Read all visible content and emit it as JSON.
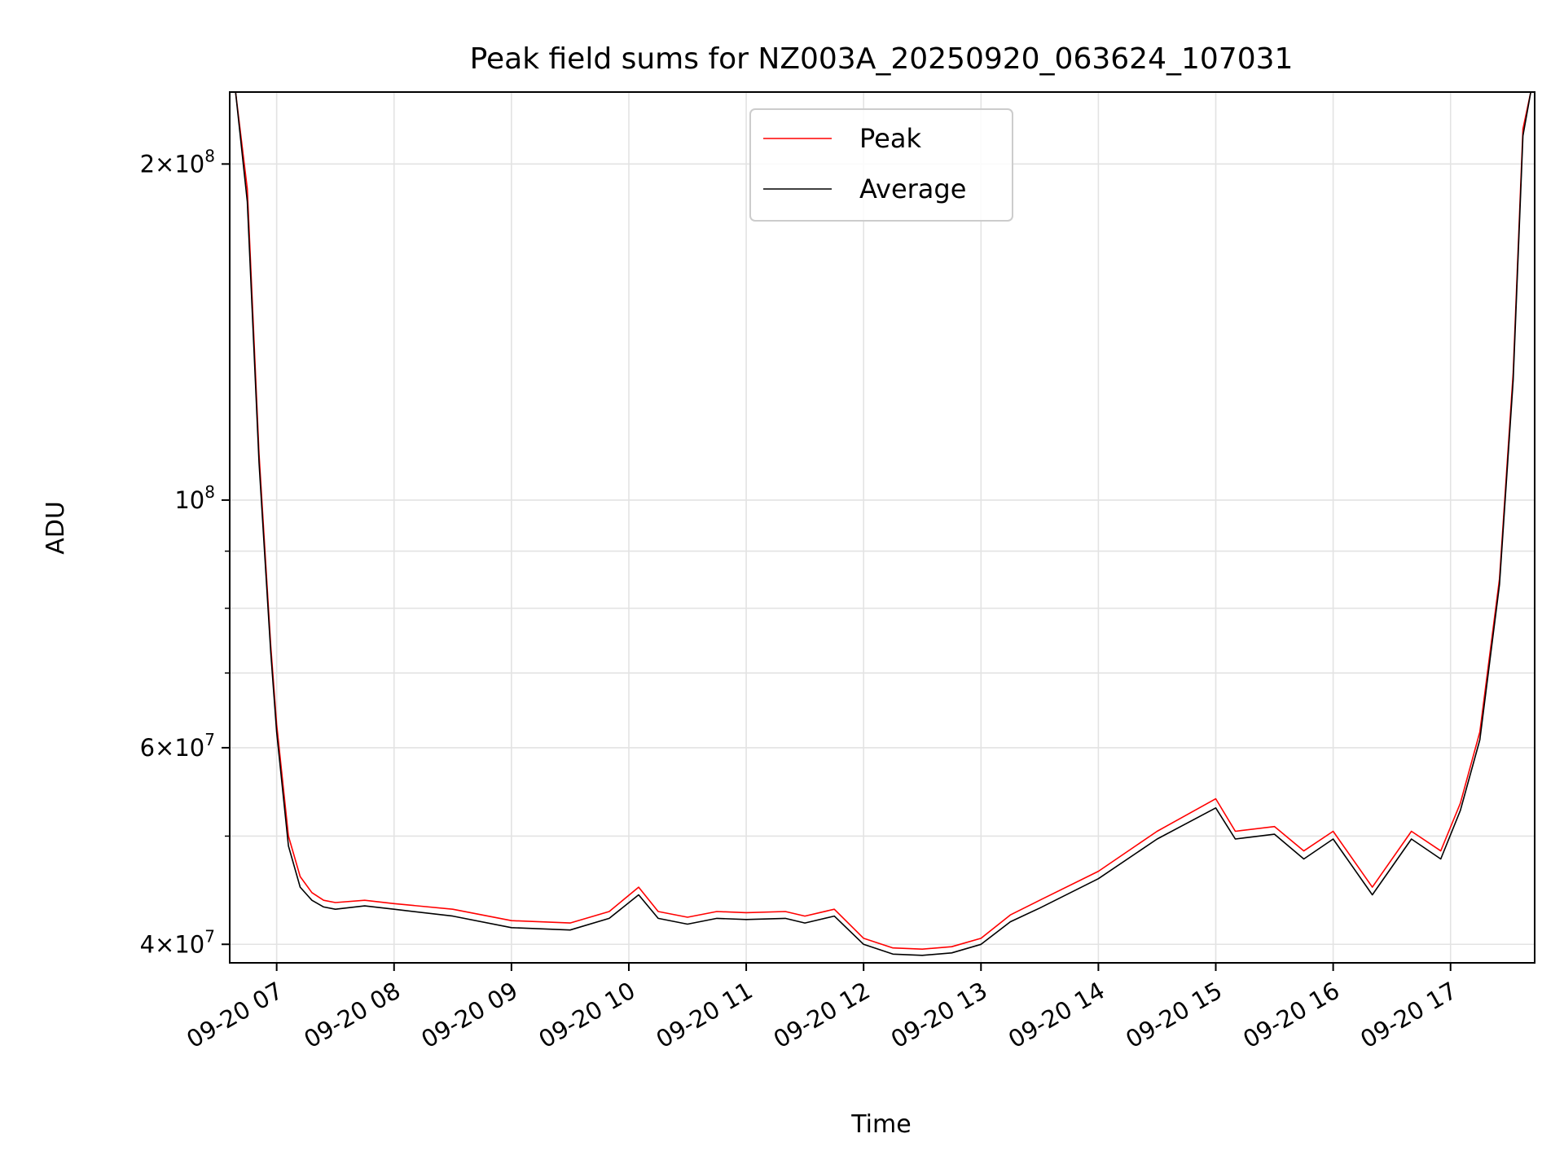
{
  "chart_data": {
    "type": "line",
    "title": "Peak field sums for NZ003A_20250920_063624_107031",
    "xlabel": "Time",
    "ylabel": "ADU",
    "yscale": "log",
    "ylim": [
      38500000,
      232000000
    ],
    "xlim": [
      "2025-09-20 06:36",
      "2025-09-20 17:43"
    ],
    "grid": true,
    "legend_position": "top-center",
    "x_ticks": [
      "09-20 07",
      "09-20 08",
      "09-20 09",
      "09-20 10",
      "09-20 11",
      "09-20 12",
      "09-20 13",
      "09-20 14",
      "09-20 15",
      "09-20 16",
      "09-20 17"
    ],
    "x_tick_values": [
      "2025-09-20 07:00",
      "2025-09-20 08:00",
      "2025-09-20 09:00",
      "2025-09-20 10:00",
      "2025-09-20 11:00",
      "2025-09-20 12:00",
      "2025-09-20 13:00",
      "2025-09-20 14:00",
      "2025-09-20 15:00",
      "2025-09-20 16:00",
      "2025-09-20 17:00"
    ],
    "y_ticks": [
      {
        "value": 40000000,
        "mantissa": "4",
        "exponent": "7"
      },
      {
        "value": 60000000,
        "mantissa": "6",
        "exponent": "7"
      },
      {
        "value": 100000000,
        "mantissa": "",
        "exponent": "8"
      },
      {
        "value": 200000000,
        "mantissa": "2",
        "exponent": "8"
      }
    ],
    "y_minor_ticks": [
      50000000,
      70000000,
      80000000,
      90000000
    ],
    "series": [
      {
        "name": "Peak",
        "color": "#ff0000",
        "x": [
          "2025-09-20 06:39",
          "2025-09-20 06:45",
          "2025-09-20 06:51",
          "2025-09-20 06:57",
          "2025-09-20 07:00",
          "2025-09-20 07:06",
          "2025-09-20 07:12",
          "2025-09-20 07:18",
          "2025-09-20 07:24",
          "2025-09-20 07:30",
          "2025-09-20 07:45",
          "2025-09-20 08:00",
          "2025-09-20 08:30",
          "2025-09-20 09:00",
          "2025-09-20 09:30",
          "2025-09-20 09:50",
          "2025-09-20 10:05",
          "2025-09-20 10:15",
          "2025-09-20 10:30",
          "2025-09-20 10:45",
          "2025-09-20 11:00",
          "2025-09-20 11:20",
          "2025-09-20 11:30",
          "2025-09-20 11:45",
          "2025-09-20 12:00",
          "2025-09-20 12:15",
          "2025-09-20 12:30",
          "2025-09-20 12:45",
          "2025-09-20 13:00",
          "2025-09-20 13:15",
          "2025-09-20 13:30",
          "2025-09-20 14:00",
          "2025-09-20 14:30",
          "2025-09-20 15:00",
          "2025-09-20 15:10",
          "2025-09-20 15:30",
          "2025-09-20 15:45",
          "2025-09-20 16:00",
          "2025-09-20 16:20",
          "2025-09-20 16:40",
          "2025-09-20 16:55",
          "2025-09-20 17:05",
          "2025-09-20 17:15",
          "2025-09-20 17:25",
          "2025-09-20 17:32",
          "2025-09-20 17:37",
          "2025-09-20 17:41"
        ],
        "y": [
          232000000,
          190000000,
          110000000,
          74000000,
          63000000,
          50000000,
          46000000,
          44500000,
          43800000,
          43600000,
          43800000,
          43500000,
          43000000,
          42000000,
          41800000,
          42800000,
          45000000,
          42800000,
          42300000,
          42800000,
          42700000,
          42800000,
          42400000,
          43000000,
          40500000,
          39700000,
          39600000,
          39800000,
          40500000,
          42500000,
          43800000,
          46500000,
          50500000,
          54000000,
          50500000,
          51000000,
          48500000,
          50500000,
          45000000,
          50500000,
          48500000,
          53500000,
          62000000,
          85000000,
          130000000,
          215000000,
          232000000
        ]
      },
      {
        "name": "Average",
        "color": "#000000",
        "x": [
          "2025-09-20 06:39",
          "2025-09-20 06:45",
          "2025-09-20 06:51",
          "2025-09-20 06:57",
          "2025-09-20 07:00",
          "2025-09-20 07:06",
          "2025-09-20 07:12",
          "2025-09-20 07:18",
          "2025-09-20 07:24",
          "2025-09-20 07:30",
          "2025-09-20 07:45",
          "2025-09-20 08:00",
          "2025-09-20 08:30",
          "2025-09-20 09:00",
          "2025-09-20 09:30",
          "2025-09-20 09:50",
          "2025-09-20 10:05",
          "2025-09-20 10:15",
          "2025-09-20 10:30",
          "2025-09-20 10:45",
          "2025-09-20 11:00",
          "2025-09-20 11:20",
          "2025-09-20 11:30",
          "2025-09-20 11:45",
          "2025-09-20 12:00",
          "2025-09-20 12:15",
          "2025-09-20 12:30",
          "2025-09-20 12:45",
          "2025-09-20 13:00",
          "2025-09-20 13:15",
          "2025-09-20 13:30",
          "2025-09-20 14:00",
          "2025-09-20 14:30",
          "2025-09-20 15:00",
          "2025-09-20 15:10",
          "2025-09-20 15:30",
          "2025-09-20 15:45",
          "2025-09-20 16:00",
          "2025-09-20 16:20",
          "2025-09-20 16:40",
          "2025-09-20 16:55",
          "2025-09-20 17:05",
          "2025-09-20 17:15",
          "2025-09-20 17:25",
          "2025-09-20 17:32",
          "2025-09-20 17:37",
          "2025-09-20 17:41"
        ],
        "y": [
          232000000,
          185000000,
          108000000,
          73000000,
          62000000,
          49000000,
          45000000,
          43800000,
          43200000,
          43000000,
          43300000,
          43000000,
          42400000,
          41400000,
          41200000,
          42200000,
          44300000,
          42200000,
          41700000,
          42200000,
          42100000,
          42200000,
          41800000,
          42400000,
          40000000,
          39200000,
          39100000,
          39300000,
          40000000,
          41900000,
          43100000,
          45800000,
          49700000,
          53000000,
          49700000,
          50200000,
          47700000,
          49700000,
          44300000,
          49700000,
          47700000,
          52700000,
          61000000,
          84000000,
          128000000,
          212000000,
          232000000
        ]
      }
    ]
  }
}
